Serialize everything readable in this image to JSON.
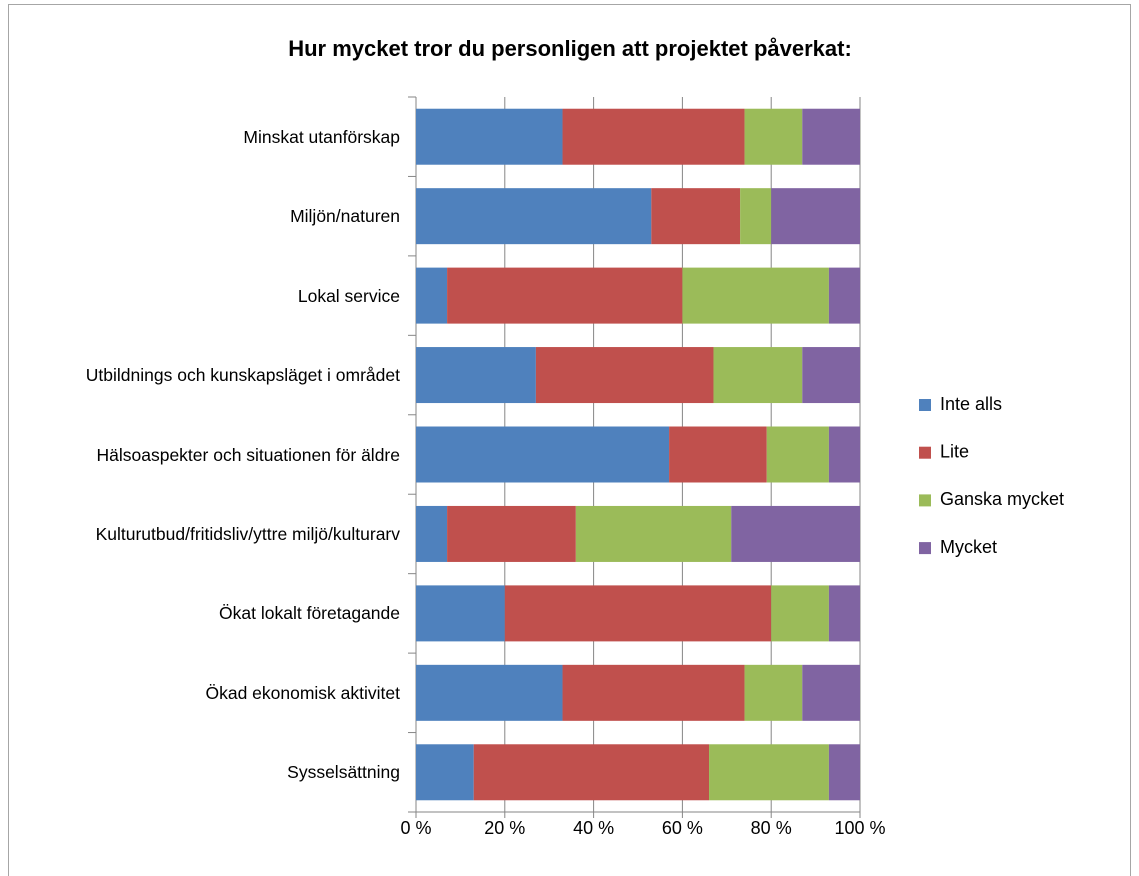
{
  "chart_data": {
    "type": "stacked_bar_horizontal",
    "title": "Hur mycket tror du personligen att projektet påverkat:",
    "categories": [
      "Minskat utanförskap",
      "Miljön/naturen",
      "Lokal service",
      "Utbildnings och kunskapsläget i området",
      "Hälsoaspekter och situationen för äldre",
      "Kulturutbud/fritidsliv/yttre miljö/kulturarv",
      "Ökat lokalt företagande",
      "Ökad ekonomisk aktivitet",
      "Sysselsättning"
    ],
    "series": [
      {
        "name": "Inte alls",
        "color": "#4f81bd",
        "values": [
          33,
          53,
          7,
          27,
          57,
          7,
          20,
          33,
          13
        ]
      },
      {
        "name": "Lite",
        "color": "#c0504d",
        "values": [
          41,
          20,
          53,
          40,
          22,
          29,
          60,
          41,
          53
        ]
      },
      {
        "name": "Ganska mycket",
        "color": "#9bbb59",
        "values": [
          13,
          7,
          33,
          20,
          14,
          35,
          13,
          13,
          27
        ]
      },
      {
        "name": "Mycket",
        "color": "#8064a2",
        "values": [
          13,
          20,
          7,
          13,
          7,
          29,
          7,
          13,
          7
        ]
      }
    ],
    "xlim": [
      0,
      100
    ],
    "xticks": [
      {
        "value": 0,
        "label": "0 %"
      },
      {
        "value": 20,
        "label": "20 %"
      },
      {
        "value": 40,
        "label": "40 %"
      },
      {
        "value": 60,
        "label": "60 %"
      },
      {
        "value": 80,
        "label": "80 %"
      },
      {
        "value": 100,
        "label": "100 %"
      }
    ],
    "grid": true,
    "legend": "right"
  }
}
